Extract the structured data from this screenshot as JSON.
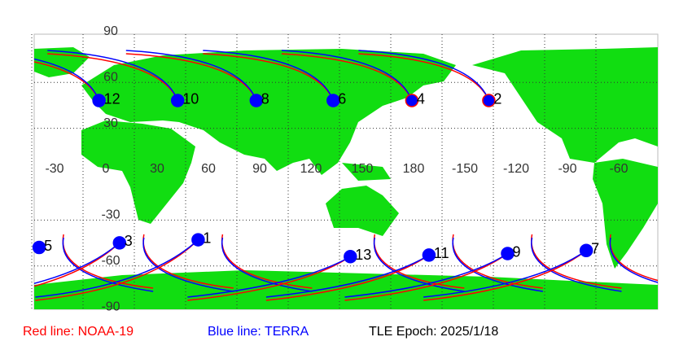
{
  "map": {
    "lat_ticks": [
      90,
      60,
      30,
      -30,
      -60,
      -90
    ],
    "lon_ticks": [
      -30,
      0,
      30,
      60,
      90,
      120,
      150,
      180,
      -150,
      -120,
      -90,
      -60
    ],
    "points": [
      {
        "label": "12",
        "lon": -4,
        "lat": 46
      },
      {
        "label": "10",
        "lon": 42,
        "lat": 46
      },
      {
        "label": "8",
        "lon": 88,
        "lat": 46
      },
      {
        "label": "6",
        "lon": 133,
        "lat": 46
      },
      {
        "label": "4",
        "lon": 179,
        "lat": 46
      },
      {
        "label": "2",
        "lon": -136,
        "lat": 46
      },
      {
        "label": "5",
        "lon": -39,
        "lat": -50
      },
      {
        "label": "3",
        "lon": 8,
        "lat": -47
      },
      {
        "label": "1",
        "lon": 54,
        "lat": -45
      },
      {
        "label": "13",
        "lon": 143,
        "lat": -56
      },
      {
        "label": "11",
        "lon": -171,
        "lat": -55
      },
      {
        "label": "9",
        "lon": -125,
        "lat": -54
      },
      {
        "label": "7",
        "lon": -79,
        "lat": -52
      }
    ],
    "legend": [
      {
        "text": "Red line: NOAA-19",
        "color": "#ff0000"
      },
      {
        "text": "Blue line: TERRA",
        "color": "#0000ff"
      },
      {
        "text": "TLE Epoch: 2025/1/18",
        "color": "#000000"
      }
    ]
  }
}
